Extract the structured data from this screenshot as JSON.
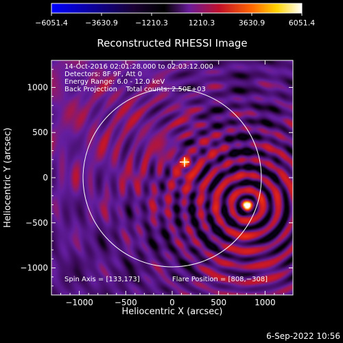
{
  "chart_data": {
    "type": "heatmap",
    "title": "Reconstructed RHESSI Image",
    "xlabel": "Heliocentric X (arcsec)",
    "ylabel": "Heliocentric Y (arcsec)",
    "xlim": [
      -1300,
      1300
    ],
    "ylim": [
      -1300,
      1300
    ],
    "x_ticks": [
      -1000,
      -500,
      0,
      500,
      1000
    ],
    "y_ticks": [
      -1000,
      -500,
      0,
      500,
      1000
    ],
    "x_tick_labels": [
      "−1000",
      "−500",
      "0",
      "500",
      "1000"
    ],
    "y_tick_labels": [
      "−1000",
      "−500",
      "0",
      "500",
      "1000"
    ],
    "colorbar": {
      "range": [
        -6051.4,
        6051.4
      ],
      "ticks": [
        -6051.4,
        -3630.9,
        -1210.3,
        1210.3,
        3630.9,
        6051.4
      ],
      "tick_labels": [
        "−6051.4",
        "−3630.9",
        "−1210.3",
        "1210.3",
        "3630.9",
        "6051.4"
      ],
      "colors": [
        "#0000ff",
        "#000000",
        "#6a1b9a",
        "#c0102a",
        "#ff6600",
        "#ffd400",
        "#ffffff"
      ]
    },
    "annotations": [
      "14-Oct-2016 02:01:28.000 to 02:03:12.000",
      "Detectors: 8F 9F, Att 0",
      "Energy Range: 6.0 - 12.0 keV",
      "Back Projection    Total counts: 2.50E+03"
    ],
    "spin_axis": "Spin Axis = [133,173]",
    "flare_position": "Flare Position = [808,−308]",
    "sources": [
      {
        "x": 808,
        "y": -308,
        "peak": 6051.4,
        "role": "flare"
      },
      {
        "x": 150,
        "y": 170,
        "peak": 3000,
        "role": "secondary"
      }
    ],
    "spin_axis_xy": [
      133,
      173
    ],
    "solar_disk_radius_arcsec": 960
  },
  "footer": {
    "date": "6-Sep-2022 10:56"
  }
}
